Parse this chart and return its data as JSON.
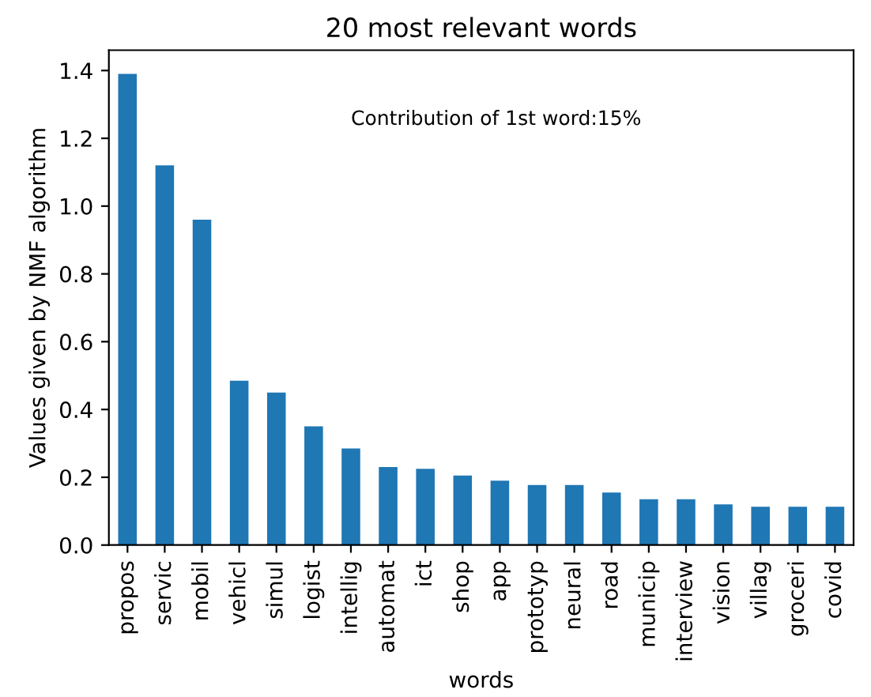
{
  "chart_data": {
    "type": "bar",
    "title": "20 most relevant words",
    "xlabel": "words",
    "ylabel": "Values given by NMF algorithm",
    "categories": [
      "propos",
      "servic",
      "mobil",
      "vehicl",
      "simul",
      "logist",
      "intellig",
      "automat",
      "ict",
      "shop",
      "app",
      "prototyp",
      "neural",
      "road",
      "municip",
      "interview",
      "vision",
      "villag",
      "groceri",
      "covid"
    ],
    "values": [
      1.39,
      1.12,
      0.96,
      0.485,
      0.45,
      0.35,
      0.285,
      0.23,
      0.225,
      0.205,
      0.19,
      0.177,
      0.177,
      0.155,
      0.135,
      0.135,
      0.12,
      0.113,
      0.113,
      0.113
    ],
    "color": "#1f77b4",
    "ylim": [
      0,
      1.46
    ],
    "yticks": [
      {
        "value": 0,
        "label": "0.0"
      },
      {
        "value": 0.2,
        "label": "0.2"
      },
      {
        "value": 0.4,
        "label": "0.4"
      },
      {
        "value": 0.6,
        "label": "0.6"
      },
      {
        "value": 0.8,
        "label": "0.8"
      },
      {
        "value": 1.0,
        "label": "1.0"
      },
      {
        "value": 1.2,
        "label": "1.2"
      },
      {
        "value": 1.4,
        "label": "1.4"
      }
    ],
    "annotations": [
      "Contribution of 1st word:15%"
    ],
    "grid": false,
    "legend": false
  }
}
